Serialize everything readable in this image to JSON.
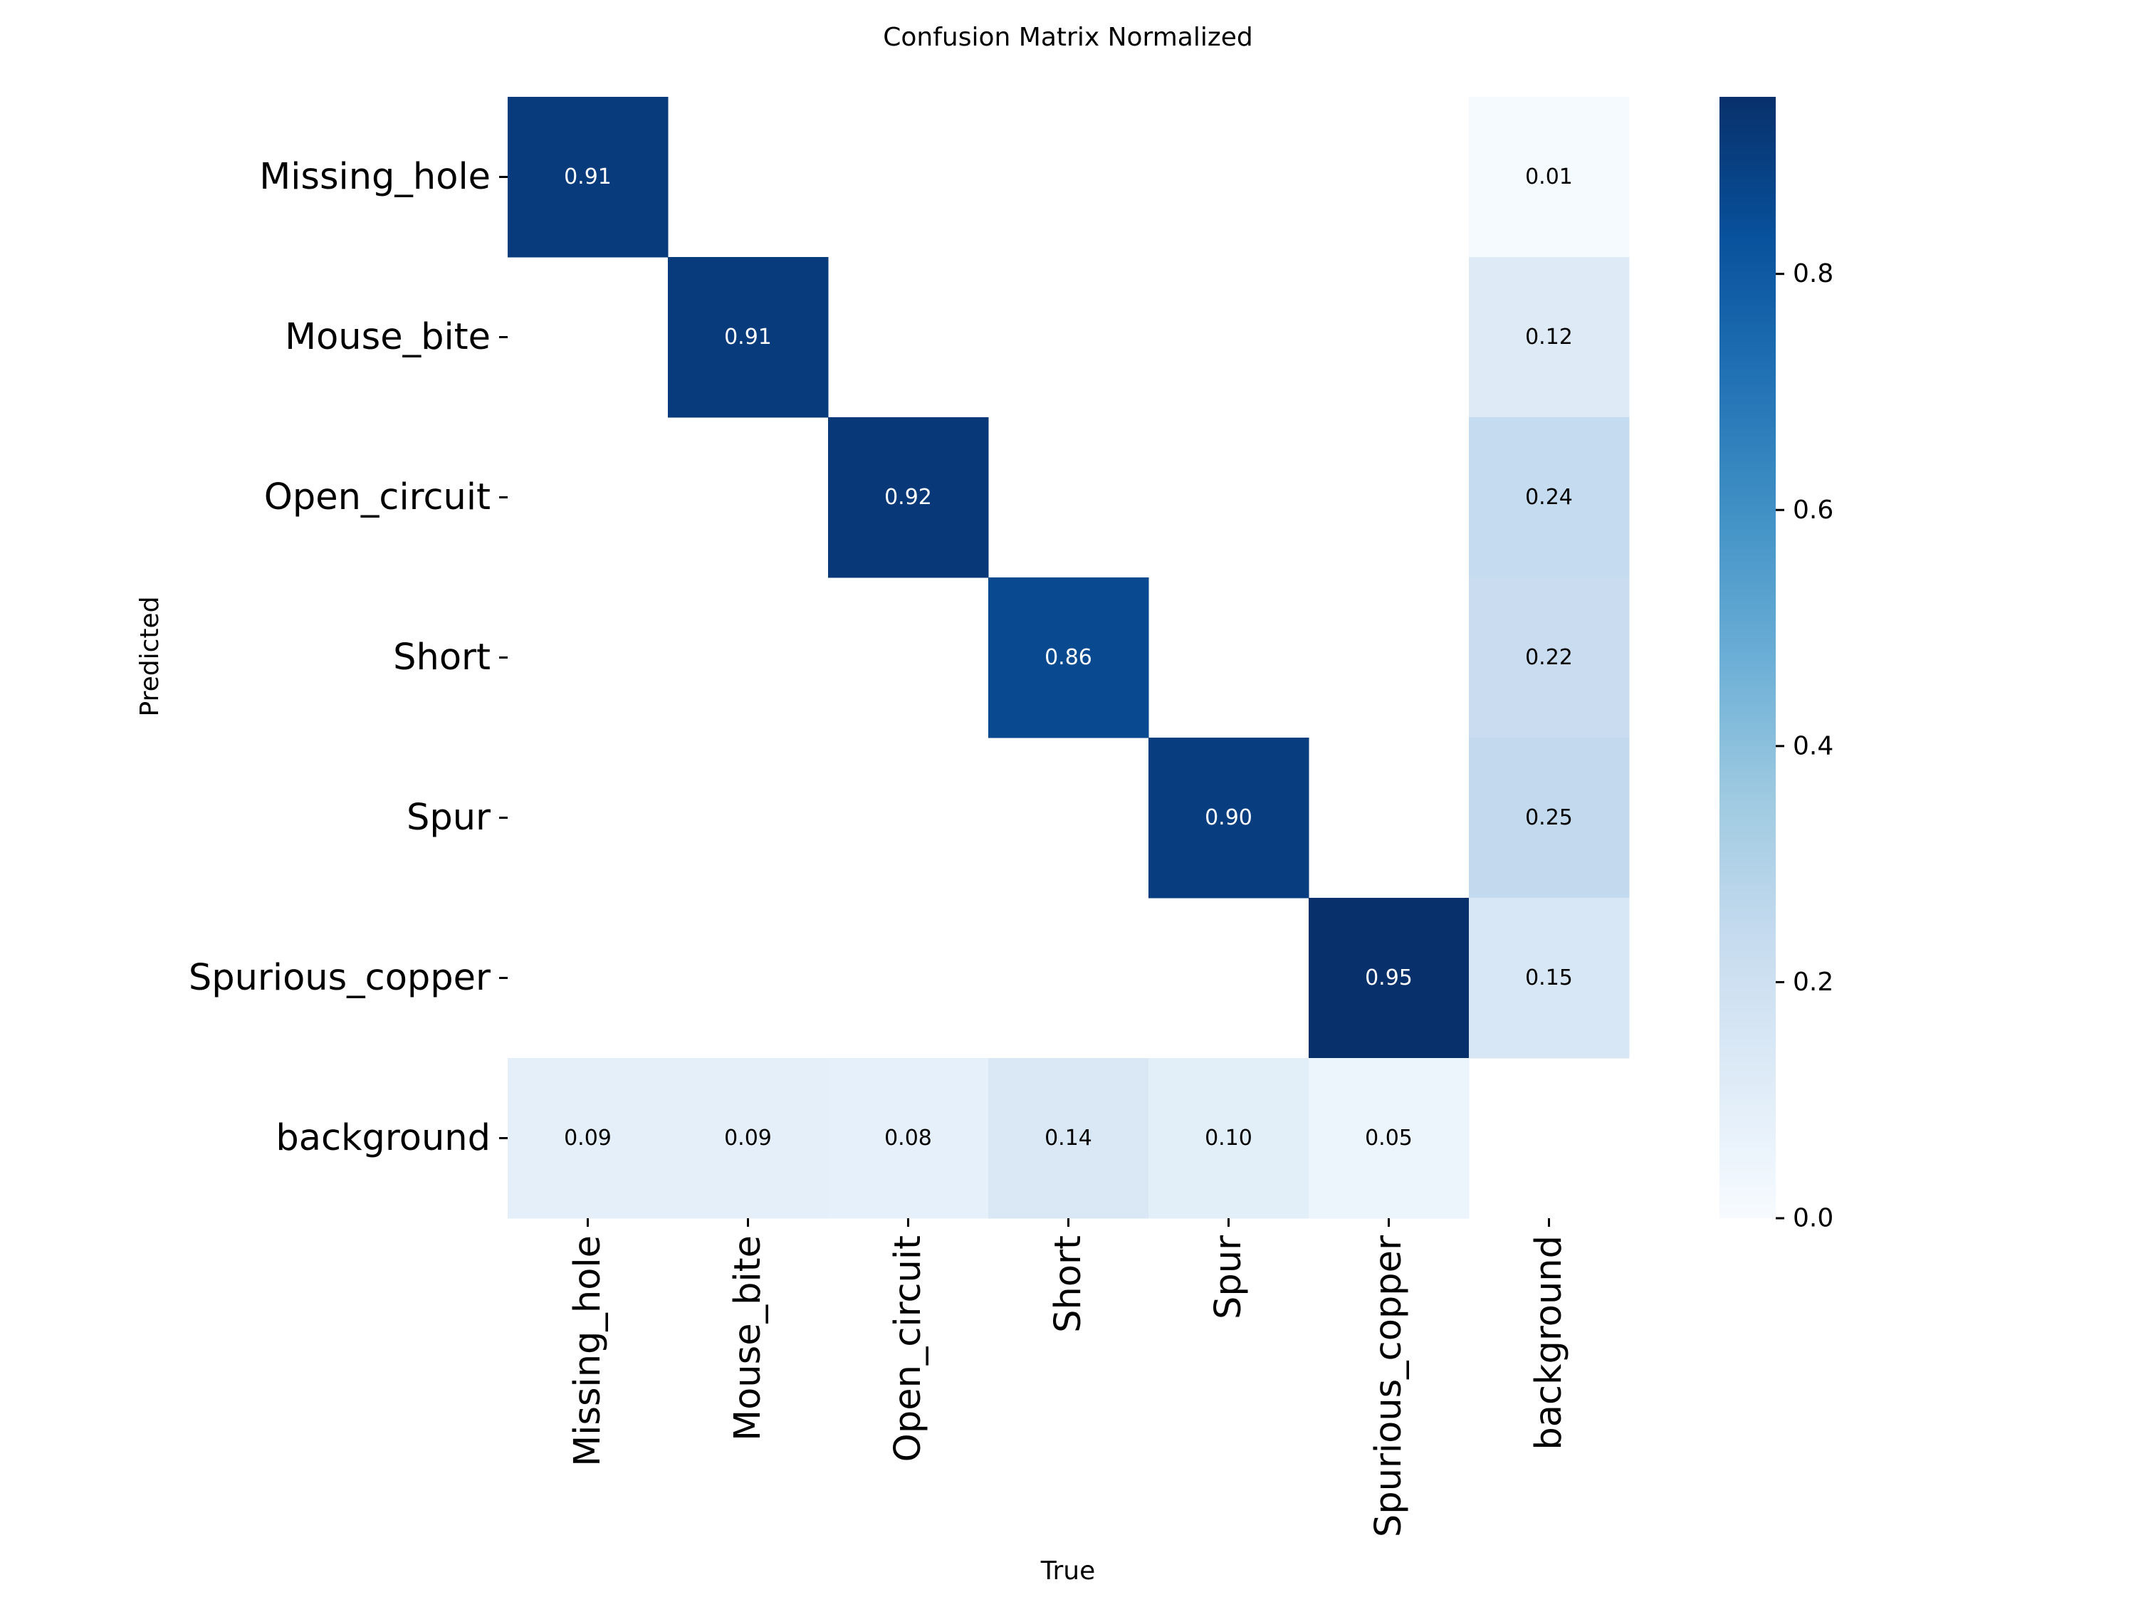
{
  "chart_data": {
    "type": "heatmap",
    "title": "Confusion Matrix Normalized",
    "xlabel": "True",
    "ylabel": "Predicted",
    "x_categories": [
      "Missing_hole",
      "Mouse_bite",
      "Open_circuit",
      "Short",
      "Spur",
      "Spurious_copper",
      "background"
    ],
    "y_categories": [
      "Missing_hole",
      "Mouse_bite",
      "Open_circuit",
      "Short",
      "Spur",
      "Spurious_copper",
      "background"
    ],
    "values": [
      [
        0.91,
        null,
        null,
        null,
        null,
        null,
        0.01
      ],
      [
        null,
        0.91,
        null,
        null,
        null,
        null,
        0.12
      ],
      [
        null,
        null,
        0.92,
        null,
        null,
        null,
        0.24
      ],
      [
        null,
        null,
        null,
        0.86,
        null,
        null,
        0.22
      ],
      [
        null,
        null,
        null,
        null,
        0.9,
        null,
        0.25
      ],
      [
        null,
        null,
        null,
        null,
        null,
        0.95,
        0.15
      ],
      [
        0.09,
        0.09,
        0.08,
        0.14,
        0.1,
        0.05,
        null
      ]
    ],
    "value_labels": [
      [
        "0.91",
        "",
        "",
        "",
        "",
        "",
        "0.01"
      ],
      [
        "",
        "0.91",
        "",
        "",
        "",
        "",
        "0.12"
      ],
      [
        "",
        "",
        "0.92",
        "",
        "",
        "",
        "0.24"
      ],
      [
        "",
        "",
        "",
        "0.86",
        "",
        "",
        "0.22"
      ],
      [
        "",
        "",
        "",
        "",
        "0.90",
        "",
        "0.25"
      ],
      [
        "",
        "",
        "",
        "",
        "",
        "0.95",
        "0.15"
      ],
      [
        "0.09",
        "0.09",
        "0.08",
        "0.14",
        "0.10",
        "0.05",
        ""
      ]
    ],
    "colorbar": {
      "colormap": "Blues",
      "range": [
        0.0,
        0.95
      ],
      "ticks": [
        0.0,
        0.2,
        0.4,
        0.6,
        0.8
      ],
      "tick_labels": [
        "0.0",
        "0.2",
        "0.4",
        "0.6",
        "0.8"
      ]
    },
    "grid": false,
    "legend": "colorbar-right"
  }
}
